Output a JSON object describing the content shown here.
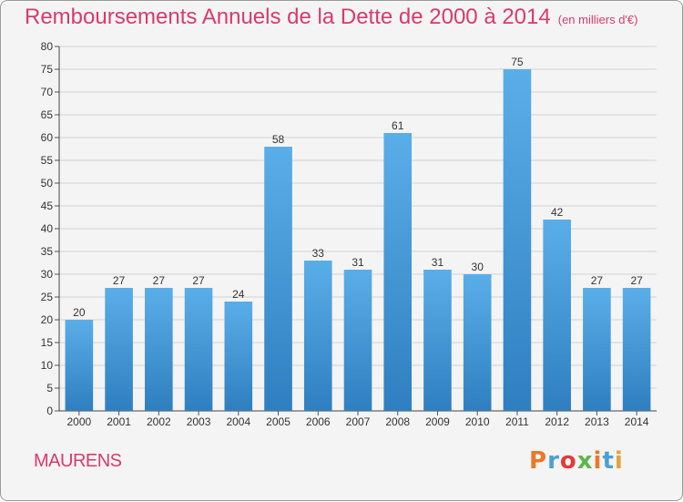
{
  "header": {
    "title": "Remboursements Annuels de la Dette de 2000 à 2014",
    "unit": "(en milliers d'€)"
  },
  "footer": {
    "commune": "MAURENS",
    "logo": "Proxiti",
    "logo_colors": [
      "#e87a2a",
      "#4aa0d8",
      "#e23a3a",
      "#5fb548",
      "#e87a2a",
      "#4aa0d8",
      "#e2a33a"
    ]
  },
  "chart_data": {
    "type": "bar",
    "categories": [
      "2000",
      "2001",
      "2002",
      "2003",
      "2004",
      "2005",
      "2006",
      "2007",
      "2008",
      "2009",
      "2010",
      "2011",
      "2012",
      "2013",
      "2014"
    ],
    "values": [
      20,
      27,
      27,
      27,
      24,
      58,
      33,
      31,
      61,
      31,
      30,
      75,
      42,
      27,
      27
    ],
    "ylim": [
      0,
      80
    ],
    "yticks": [
      0,
      5,
      10,
      15,
      20,
      25,
      30,
      35,
      40,
      45,
      50,
      55,
      60,
      65,
      70,
      75,
      80
    ],
    "grid": true,
    "bar_color_top": "#5aaee8",
    "bar_color_bottom": "#2f7fc0"
  }
}
